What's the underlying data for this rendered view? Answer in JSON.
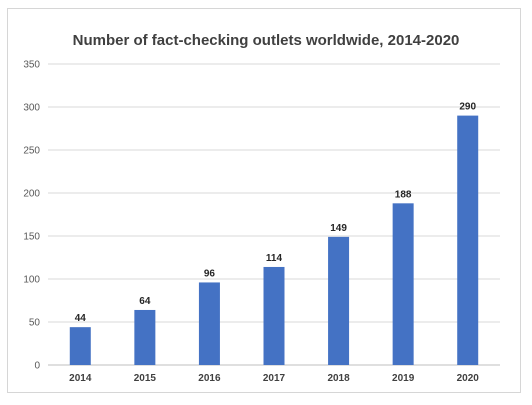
{
  "chart_data": {
    "type": "bar",
    "title": "Number of fact-checking outlets worldwide, 2014-2020",
    "xlabel": "",
    "ylabel": "",
    "categories": [
      "2014",
      "2015",
      "2016",
      "2017",
      "2018",
      "2019",
      "2020"
    ],
    "values": [
      44,
      64,
      96,
      114,
      149,
      188,
      290
    ],
    "ylim": [
      0,
      350
    ],
    "yticks": [
      0,
      50,
      100,
      150,
      200,
      250,
      300,
      350
    ],
    "grid": true,
    "legend": "none",
    "data_labels": true,
    "colors": {
      "bar": "#4472c4",
      "grid": "#d9d9d9",
      "axis": "#bfbfbf"
    }
  }
}
